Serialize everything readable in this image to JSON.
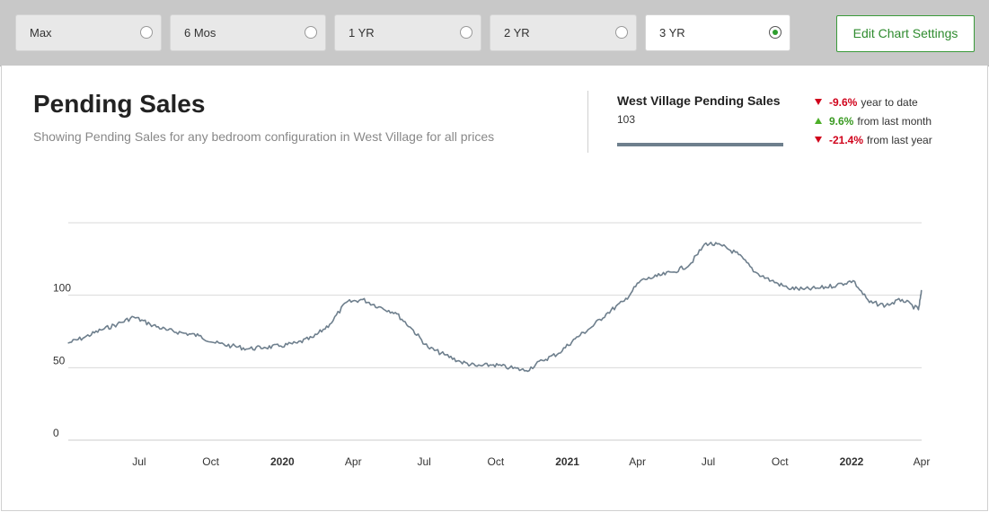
{
  "range_buttons": [
    {
      "label": "Max",
      "selected": false
    },
    {
      "label": "6 Mos",
      "selected": false
    },
    {
      "label": "1 YR",
      "selected": false
    },
    {
      "label": "2 YR",
      "selected": false
    },
    {
      "label": "3 YR",
      "selected": true
    }
  ],
  "edit_button_label": "Edit Chart Settings",
  "header": {
    "title": "Pending Sales",
    "subtitle": "Showing Pending Sales for any bedroom configuration in West Village for all prices"
  },
  "summary": {
    "title": "West Village Pending Sales",
    "value": "103",
    "stats": [
      {
        "direction": "down",
        "percent": "-9.6%",
        "label": "year to date"
      },
      {
        "direction": "up",
        "percent": "9.6%",
        "label": "from last month"
      },
      {
        "direction": "down",
        "percent": "-21.4%",
        "label": "from last year"
      }
    ]
  },
  "colors": {
    "line": "#6e7f8d",
    "negative": "#d0021b",
    "positive": "#3a9a22",
    "accent_green": "#2e8b2e"
  },
  "chart_data": {
    "type": "line",
    "title": "Pending Sales",
    "xlabel": "",
    "ylabel": "",
    "ylim": [
      0,
      150
    ],
    "y_ticks": [
      0,
      50,
      100
    ],
    "grid": true,
    "x_ticks": [
      {
        "label": "Jul",
        "date": "2019-07-01",
        "bold": false
      },
      {
        "label": "Oct",
        "date": "2019-10-01",
        "bold": false
      },
      {
        "label": "2020",
        "date": "2020-01-01",
        "bold": true
      },
      {
        "label": "Apr",
        "date": "2020-04-01",
        "bold": false
      },
      {
        "label": "Jul",
        "date": "2020-07-01",
        "bold": false
      },
      {
        "label": "Oct",
        "date": "2020-10-01",
        "bold": false
      },
      {
        "label": "2021",
        "date": "2021-01-01",
        "bold": true
      },
      {
        "label": "Apr",
        "date": "2021-04-01",
        "bold": false
      },
      {
        "label": "Jul",
        "date": "2021-07-01",
        "bold": false
      },
      {
        "label": "Oct",
        "date": "2021-10-01",
        "bold": false
      },
      {
        "label": "2022",
        "date": "2022-01-01",
        "bold": true
      },
      {
        "label": "Apr",
        "date": "2022-04-01",
        "bold": false
      }
    ],
    "series": [
      {
        "name": "West Village Pending Sales",
        "x": [
          "2019-04-01",
          "2019-04-22",
          "2019-05-13",
          "2019-06-03",
          "2019-06-24",
          "2019-07-15",
          "2019-08-05",
          "2019-08-26",
          "2019-09-16",
          "2019-10-07",
          "2019-10-28",
          "2019-11-18",
          "2019-12-09",
          "2019-12-30",
          "2020-01-20",
          "2020-02-10",
          "2020-03-02",
          "2020-03-23",
          "2020-04-13",
          "2020-05-04",
          "2020-05-25",
          "2020-06-15",
          "2020-07-06",
          "2020-07-27",
          "2020-08-17",
          "2020-09-07",
          "2020-09-28",
          "2020-10-19",
          "2020-11-09",
          "2020-11-30",
          "2020-12-21",
          "2021-01-11",
          "2021-02-01",
          "2021-02-22",
          "2021-03-15",
          "2021-04-05",
          "2021-04-26",
          "2021-05-17",
          "2021-06-07",
          "2021-06-28",
          "2021-07-19",
          "2021-08-09",
          "2021-08-30",
          "2021-09-20",
          "2021-10-11",
          "2021-11-01",
          "2021-11-22",
          "2021-12-13",
          "2022-01-03",
          "2022-01-24",
          "2022-02-14",
          "2022-03-07",
          "2022-03-28",
          "2022-04-01"
        ],
        "y": [
          67,
          71,
          76,
          80,
          85,
          80,
          76,
          74,
          72,
          67,
          65,
          63,
          64,
          65,
          67,
          71,
          80,
          95,
          97,
          92,
          88,
          77,
          64,
          59,
          54,
          51,
          52,
          50,
          48,
          55,
          60,
          70,
          78,
          88,
          96,
          110,
          113,
          116,
          121,
          136,
          134,
          128,
          116,
          110,
          105,
          104,
          105,
          107,
          110,
          95,
          93,
          97,
          90,
          103
        ]
      }
    ]
  }
}
